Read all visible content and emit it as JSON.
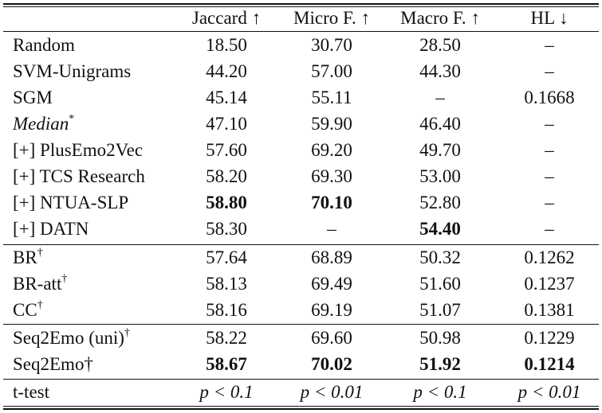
{
  "table": {
    "header": {
      "method": "",
      "jaccard": "Jaccard ↑",
      "micro_f": "Micro F. ↑",
      "macro_f": "Macro F. ↑",
      "hl": "HL ↓"
    },
    "rows": [
      {
        "method": "Random",
        "sup": "",
        "jaccard": "18.50",
        "micro_f": "30.70",
        "macro_f": "28.50",
        "hl": "–"
      },
      {
        "method": "SVM-Unigrams",
        "sup": "",
        "jaccard": "44.20",
        "micro_f": "57.00",
        "macro_f": "44.30",
        "hl": "–"
      },
      {
        "method": "SGM",
        "sup": "",
        "jaccard": "45.14",
        "micro_f": "55.11",
        "macro_f": "–",
        "hl": "0.1668"
      },
      {
        "method": "Median",
        "sup": "*",
        "jaccard": "47.10",
        "micro_f": "59.90",
        "macro_f": "46.40",
        "hl": "–"
      },
      {
        "method": "[+] PlusEmo2Vec",
        "sup": "",
        "jaccard": "57.60",
        "micro_f": "69.20",
        "macro_f": "49.70",
        "hl": "–"
      },
      {
        "method": "[+] TCS Research",
        "sup": "",
        "jaccard": "58.20",
        "micro_f": "69.30",
        "macro_f": "53.00",
        "hl": "–"
      },
      {
        "method": "[+] NTUA-SLP",
        "sup": "",
        "jaccard": "58.80",
        "micro_f": "70.10",
        "macro_f": "52.80",
        "hl": "–"
      },
      {
        "method": "[+] DATN",
        "sup": "",
        "jaccard": "58.30",
        "micro_f": "–",
        "macro_f": "54.40",
        "hl": "–"
      },
      {
        "method": "BR",
        "sup": "†",
        "jaccard": "57.64",
        "micro_f": "68.89",
        "macro_f": "50.32",
        "hl": "0.1262"
      },
      {
        "method": "BR-att",
        "sup": "†",
        "jaccard": "58.13",
        "micro_f": "69.49",
        "macro_f": "51.60",
        "hl": "0.1237"
      },
      {
        "method": "CC",
        "sup": "†",
        "jaccard": "58.16",
        "micro_f": "69.19",
        "macro_f": "51.07",
        "hl": "0.1381"
      },
      {
        "method": "Seq2Emo (uni)",
        "sup": "†",
        "jaccard": "58.22",
        "micro_f": "69.60",
        "macro_f": "50.98",
        "hl": "0.1229"
      },
      {
        "method": "Seq2Emo†",
        "sup": "",
        "jaccard": "58.67",
        "micro_f": "70.02",
        "macro_f": "51.92",
        "hl": "0.1214"
      },
      {
        "method": "t-test",
        "sup": "",
        "jaccard": "p < 0.1",
        "micro_f": "p < 0.01",
        "macro_f": "p < 0.1",
        "hl": "p < 0.01"
      }
    ]
  }
}
